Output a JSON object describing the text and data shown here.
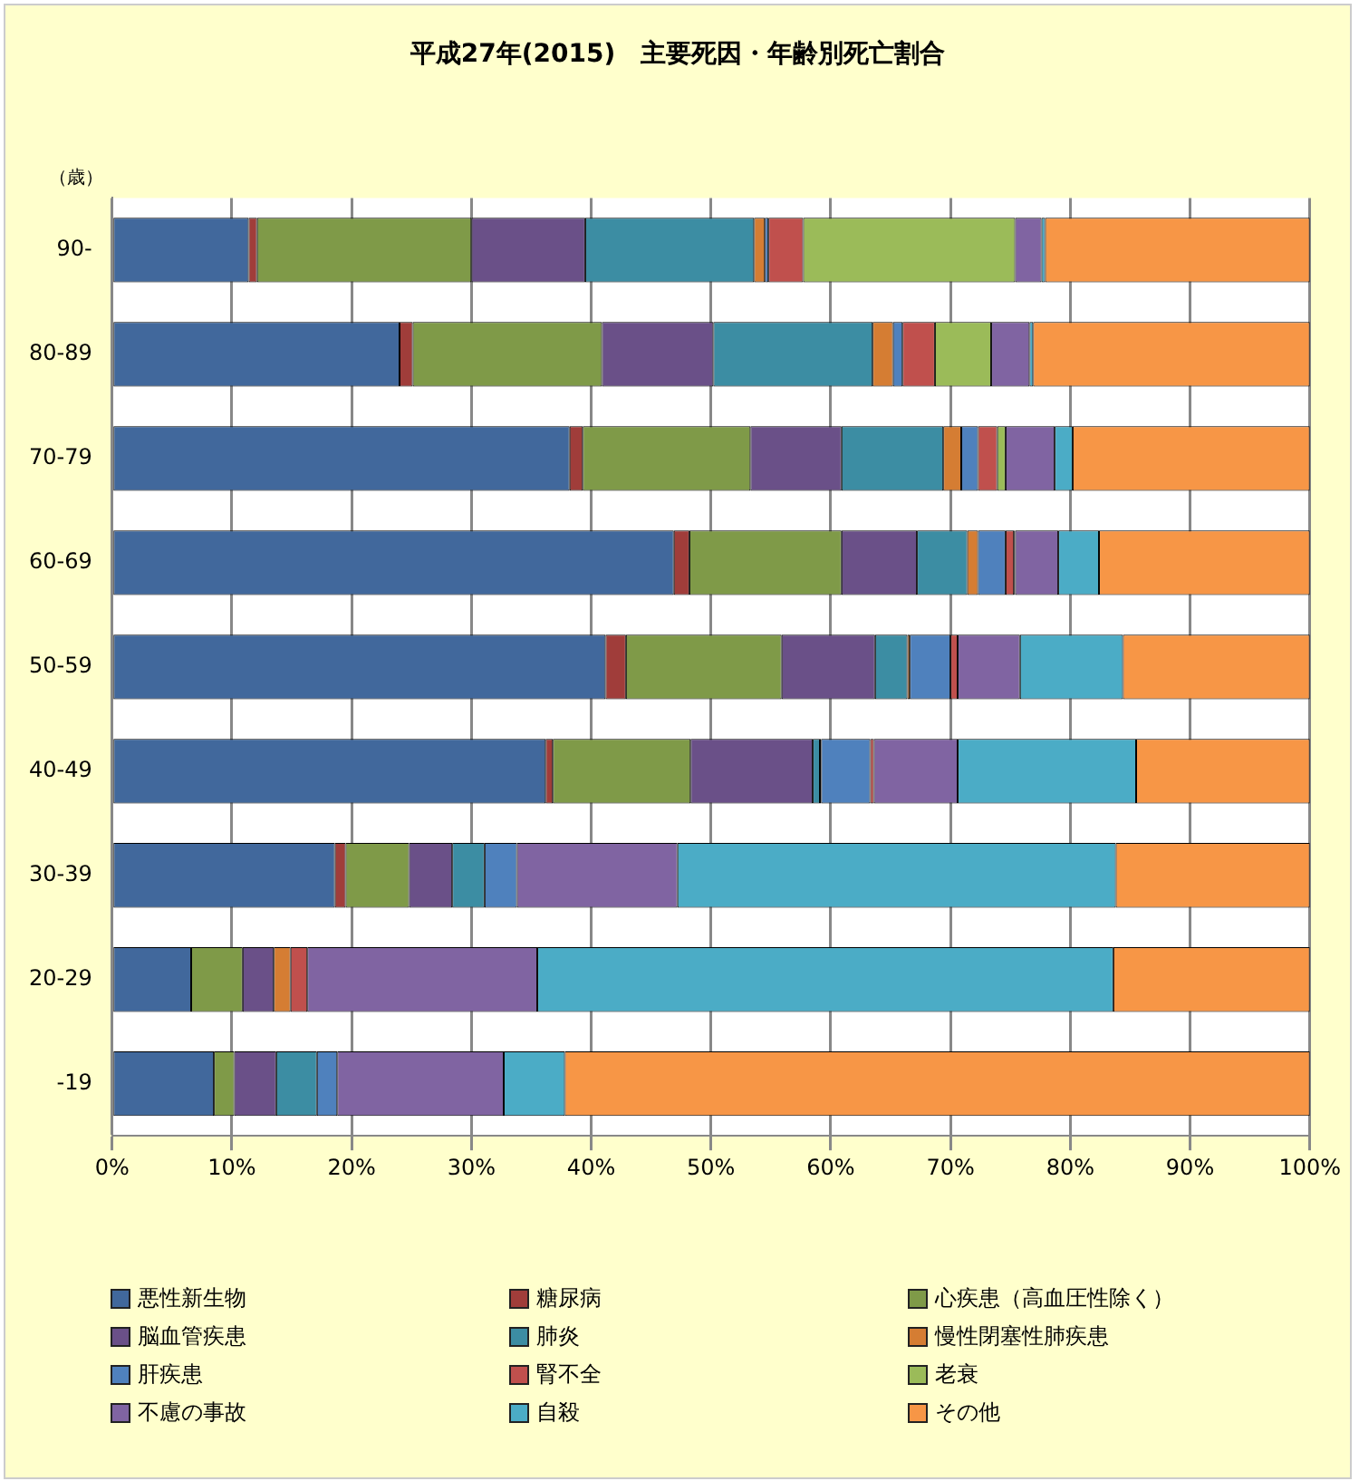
{
  "chart_data": {
    "type": "bar",
    "orientation": "horizontal",
    "stacked": true,
    "title": "平成27年(2015)　主要死因・年齢別死亡割合",
    "ylabel": "（歳）",
    "categories": [
      "90-",
      "80-89",
      "70-79",
      "60-69",
      "50-59",
      "40-49",
      "30-39",
      "20-29",
      "-19"
    ],
    "xlim": [
      0,
      100
    ],
    "xticks": [
      {
        "value": 0,
        "label": "0%"
      },
      {
        "value": 10,
        "label": "10%"
      },
      {
        "value": 20,
        "label": "20%"
      },
      {
        "value": 30,
        "label": "30%"
      },
      {
        "value": 40,
        "label": "40%"
      },
      {
        "value": 50,
        "label": "50%"
      },
      {
        "value": 60,
        "label": "60%"
      },
      {
        "value": 70,
        "label": "70%"
      },
      {
        "value": 80,
        "label": "80%"
      },
      {
        "value": 90,
        "label": "90%"
      },
      {
        "value": 100,
        "label": "100%"
      }
    ],
    "grid": "x",
    "legend": "bottom",
    "series": [
      {
        "name": "悪性新生物",
        "color": "#41689c",
        "values": [
          11.4,
          24.0,
          38.2,
          46.9,
          41.2,
          36.2,
          18.6,
          6.6,
          8.5
        ]
      },
      {
        "name": "糖尿病",
        "color": "#a03d3a",
        "values": [
          0.7,
          1.1,
          1.1,
          1.3,
          1.7,
          0.6,
          0.9,
          0,
          0
        ]
      },
      {
        "name": "心疾患（高血圧性除く）",
        "color": "#7f9a48",
        "values": [
          17.9,
          15.8,
          14.0,
          12.7,
          13.0,
          11.5,
          5.3,
          4.3,
          1.7
        ]
      },
      {
        "name": "脳血管疾患",
        "color": "#6a5088",
        "values": [
          9.5,
          9.3,
          7.6,
          6.3,
          7.8,
          10.2,
          3.6,
          2.6,
          3.5
        ]
      },
      {
        "name": "肺炎",
        "color": "#3c8da3",
        "values": [
          14.1,
          13.3,
          8.5,
          4.2,
          2.7,
          0.6,
          2.7,
          0,
          3.4
        ]
      },
      {
        "name": "慢性閉塞性肺疾患",
        "color": "#d57d33",
        "values": [
          0.9,
          1.7,
          1.5,
          0.9,
          0.2,
          0.1,
          0,
          1.4,
          0
        ]
      },
      {
        "name": "肝疾患",
        "color": "#4f81bd",
        "values": [
          0.3,
          0.8,
          1.4,
          2.3,
          3.4,
          4.1,
          2.7,
          0,
          1.7
        ]
      },
      {
        "name": "腎不全",
        "color": "#c0504d",
        "values": [
          2.9,
          2.7,
          1.6,
          0.7,
          0.6,
          0.3,
          0,
          1.4,
          0
        ]
      },
      {
        "name": "老衰",
        "color": "#9bbb59",
        "values": [
          17.7,
          4.7,
          0.7,
          0.1,
          0,
          0,
          0,
          0,
          0
        ]
      },
      {
        "name": "不慮の事故",
        "color": "#8064a2",
        "values": [
          2.2,
          3.2,
          4.1,
          3.6,
          5.2,
          7.0,
          13.4,
          19.2,
          13.9
        ]
      },
      {
        "name": "自殺",
        "color": "#4bacc6",
        "values": [
          0.3,
          0.3,
          1.5,
          3.4,
          8.6,
          14.9,
          36.6,
          48.1,
          5.1
        ]
      },
      {
        "name": "その他",
        "color": "#f79646",
        "values": [
          22.1,
          23.1,
          19.8,
          17.6,
          15.6,
          14.5,
          16.2,
          16.4,
          62.2
        ]
      }
    ]
  }
}
